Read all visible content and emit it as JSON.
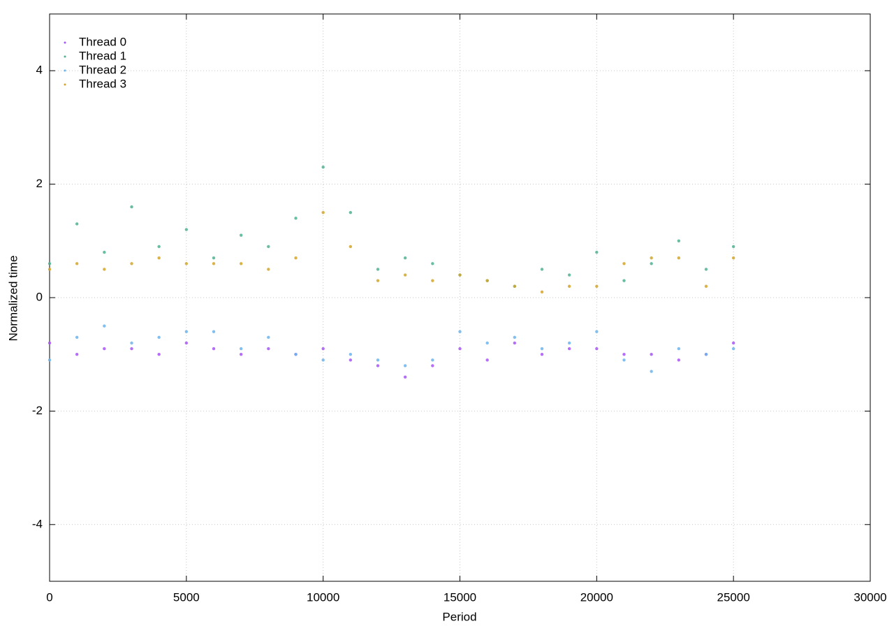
{
  "chart_data": {
    "type": "scatter",
    "x_label": "Period",
    "y_label": "Normalized time",
    "x": [
      0,
      1000,
      2000,
      3000,
      4000,
      5000,
      6000,
      7000,
      8000,
      9000,
      10000,
      11000,
      12000,
      13000,
      14000,
      15000,
      16000,
      17000,
      18000,
      19000,
      20000,
      21000,
      22000,
      23000,
      24000,
      25000
    ],
    "series": [
      {
        "name": "Thread 0",
        "color": "#a855f7",
        "values": [
          -0.8,
          -1.0,
          -0.9,
          -0.9,
          -1.0,
          -0.8,
          -0.9,
          -1.0,
          -0.9,
          -1.0,
          -0.9,
          -1.1,
          -1.2,
          -1.4,
          -1.2,
          -0.9,
          -1.1,
          -0.8,
          -1.0,
          -0.9,
          -0.9,
          -1.0,
          -1.0,
          -1.1,
          -1.0,
          -0.8
        ]
      },
      {
        "name": "Thread 1",
        "color": "#4fb38f",
        "values": [
          0.6,
          1.3,
          0.8,
          1.6,
          0.9,
          1.2,
          0.7,
          1.1,
          0.9,
          1.4,
          2.3,
          1.5,
          0.5,
          0.7,
          0.6,
          0.4,
          0.3,
          0.2,
          0.5,
          0.4,
          0.8,
          0.3,
          0.6,
          1.0,
          0.5,
          0.9
        ]
      },
      {
        "name": "Thread 2",
        "color": "#6cb4ec",
        "values": [
          -1.1,
          -0.7,
          -0.5,
          -0.8,
          -0.7,
          -0.6,
          -0.6,
          -0.9,
          -0.7,
          -1.0,
          -1.1,
          -1.0,
          -1.1,
          -1.2,
          -1.1,
          -0.6,
          -0.8,
          -0.7,
          -0.9,
          -0.8,
          -0.6,
          -1.1,
          -1.3,
          -0.9,
          -1.0,
          -0.9
        ]
      },
      {
        "name": "Thread 3",
        "color": "#d4a52a",
        "values": [
          0.5,
          0.6,
          0.5,
          0.6,
          0.7,
          0.6,
          0.6,
          0.6,
          0.5,
          0.7,
          1.5,
          0.9,
          0.3,
          0.4,
          0.3,
          0.4,
          0.3,
          0.2,
          0.1,
          0.2,
          0.2,
          0.6,
          0.7,
          0.7,
          0.2,
          0.7
        ]
      }
    ],
    "xlim": [
      0,
      30000
    ],
    "xticks": [
      0,
      5000,
      10000,
      15000,
      20000,
      25000,
      30000
    ],
    "ylim": [
      -5,
      5
    ],
    "yticks": [
      -4,
      -2,
      0,
      2,
      4
    ],
    "grid": true,
    "legend": "top-left"
  }
}
